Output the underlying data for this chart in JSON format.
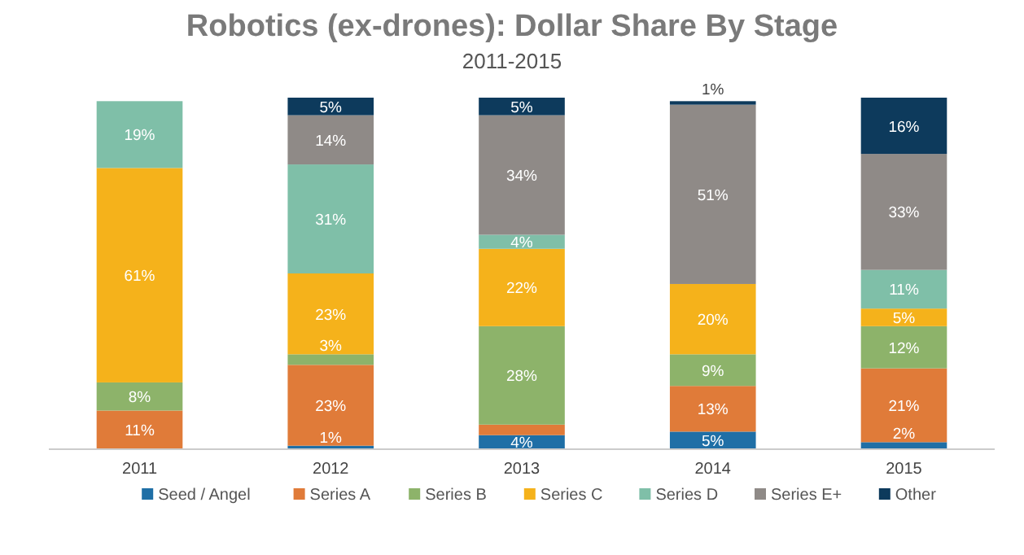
{
  "chart_data": {
    "type": "bar",
    "title": "Robotics (ex-drones): Dollar Share By Stage",
    "subtitle": "2011-2015",
    "stacked": true,
    "legend": "bottom",
    "grid": false,
    "categories": [
      "2011",
      "2012",
      "2013",
      "2014",
      "2015"
    ],
    "series": [
      {
        "name": "Seed / Angel",
        "color": "#1f6fa6",
        "values": [
          0,
          1,
          4,
          5,
          2
        ],
        "value_labels": [
          null,
          "1%",
          "4%",
          "5%",
          "2%"
        ]
      },
      {
        "name": "Series A",
        "color": "#e07b39",
        "values": [
          11,
          23,
          3,
          13,
          21
        ],
        "value_labels": [
          "11%",
          "23%",
          null,
          "13%",
          "21%"
        ]
      },
      {
        "name": "Series B",
        "color": "#8db36a",
        "values": [
          8,
          3,
          28,
          9,
          12
        ],
        "value_labels": [
          "8%",
          "3%",
          "28%",
          "9%",
          "12%"
        ]
      },
      {
        "name": "Series C",
        "color": "#f5b21b",
        "values": [
          61,
          23,
          22,
          20,
          5
        ],
        "value_labels": [
          "61%",
          "23%",
          "22%",
          "20%",
          "5%"
        ]
      },
      {
        "name": "Series D",
        "color": "#7fbfa8",
        "values": [
          19,
          31,
          4,
          0,
          11
        ],
        "value_labels": [
          "19%",
          "31%",
          "4%",
          null,
          "11%"
        ]
      },
      {
        "name": "Series E+",
        "color": "#8f8a87",
        "values": [
          0,
          14,
          34,
          51,
          33
        ],
        "value_labels": [
          null,
          "14%",
          "34%",
          "51%",
          "33%"
        ]
      },
      {
        "name": "Other",
        "color": "#0d3a5c",
        "values": [
          0,
          5,
          5,
          1,
          16
        ],
        "value_labels": [
          null,
          "5%",
          "5%",
          "1%",
          "16%"
        ]
      }
    ]
  }
}
